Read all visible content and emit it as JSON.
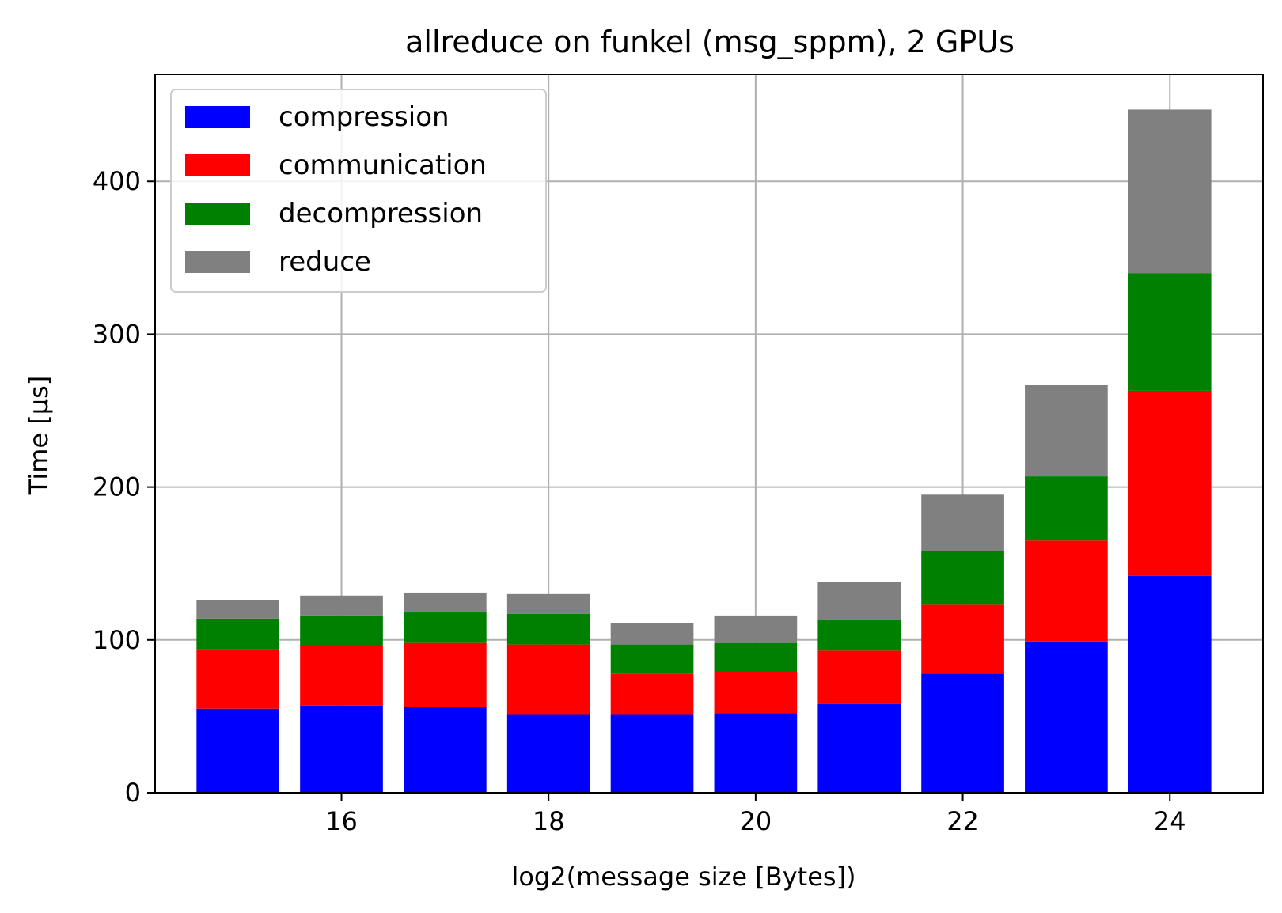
{
  "chart_data": {
    "type": "bar",
    "stacked": true,
    "title": "allreduce on funkel (msg_sppm), 2 GPUs",
    "xlabel": "log2(message size [Bytes])",
    "ylabel": "Time [µs]",
    "x": [
      15,
      16,
      17,
      18,
      19,
      20,
      21,
      22,
      23,
      24
    ],
    "xlim": [
      14.2,
      24.9
    ],
    "ylim": [
      0,
      470
    ],
    "xticks": [
      16,
      18,
      20,
      22,
      24
    ],
    "yticks": [
      0,
      100,
      200,
      300,
      400
    ],
    "grid": true,
    "legend_position": "top-left",
    "series": [
      {
        "name": "compression",
        "color": "#0000ff",
        "values": [
          55,
          57,
          56,
          51,
          51,
          52,
          58,
          78,
          99,
          142
        ]
      },
      {
        "name": "communication",
        "color": "#ff0000",
        "values": [
          39,
          39,
          42,
          46,
          27,
          27,
          35,
          45,
          66,
          121
        ]
      },
      {
        "name": "decompression",
        "color": "#008000",
        "values": [
          20,
          20,
          20,
          20,
          19,
          19,
          20,
          35,
          42,
          77
        ]
      },
      {
        "name": "reduce",
        "color": "#808080",
        "values": [
          12,
          13,
          13,
          13,
          14,
          18,
          25,
          37,
          60,
          107
        ]
      }
    ]
  }
}
